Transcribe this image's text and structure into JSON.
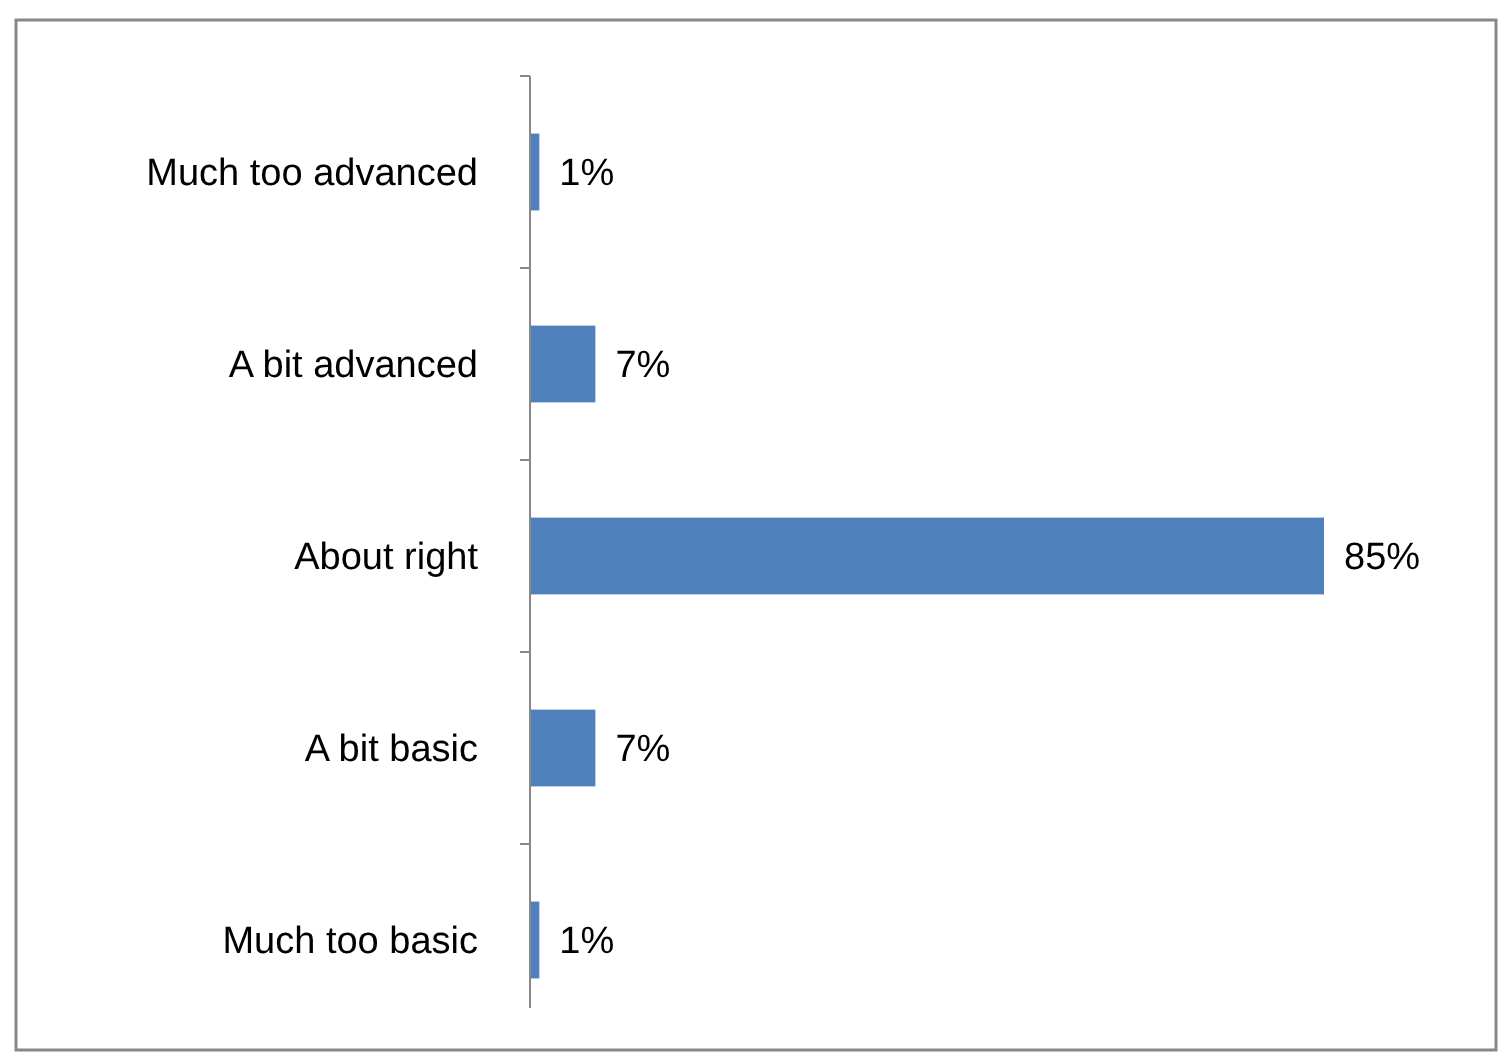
{
  "chart_data": {
    "type": "bar",
    "orientation": "horizontal",
    "categories": [
      "Much too advanced",
      "A bit advanced",
      "About right",
      "A bit basic",
      "Much too basic"
    ],
    "values": [
      1,
      7,
      85,
      7,
      1
    ],
    "value_labels": [
      "1%",
      "7%",
      "85%",
      "7%",
      "1%"
    ],
    "color": "#4f81bd"
  }
}
